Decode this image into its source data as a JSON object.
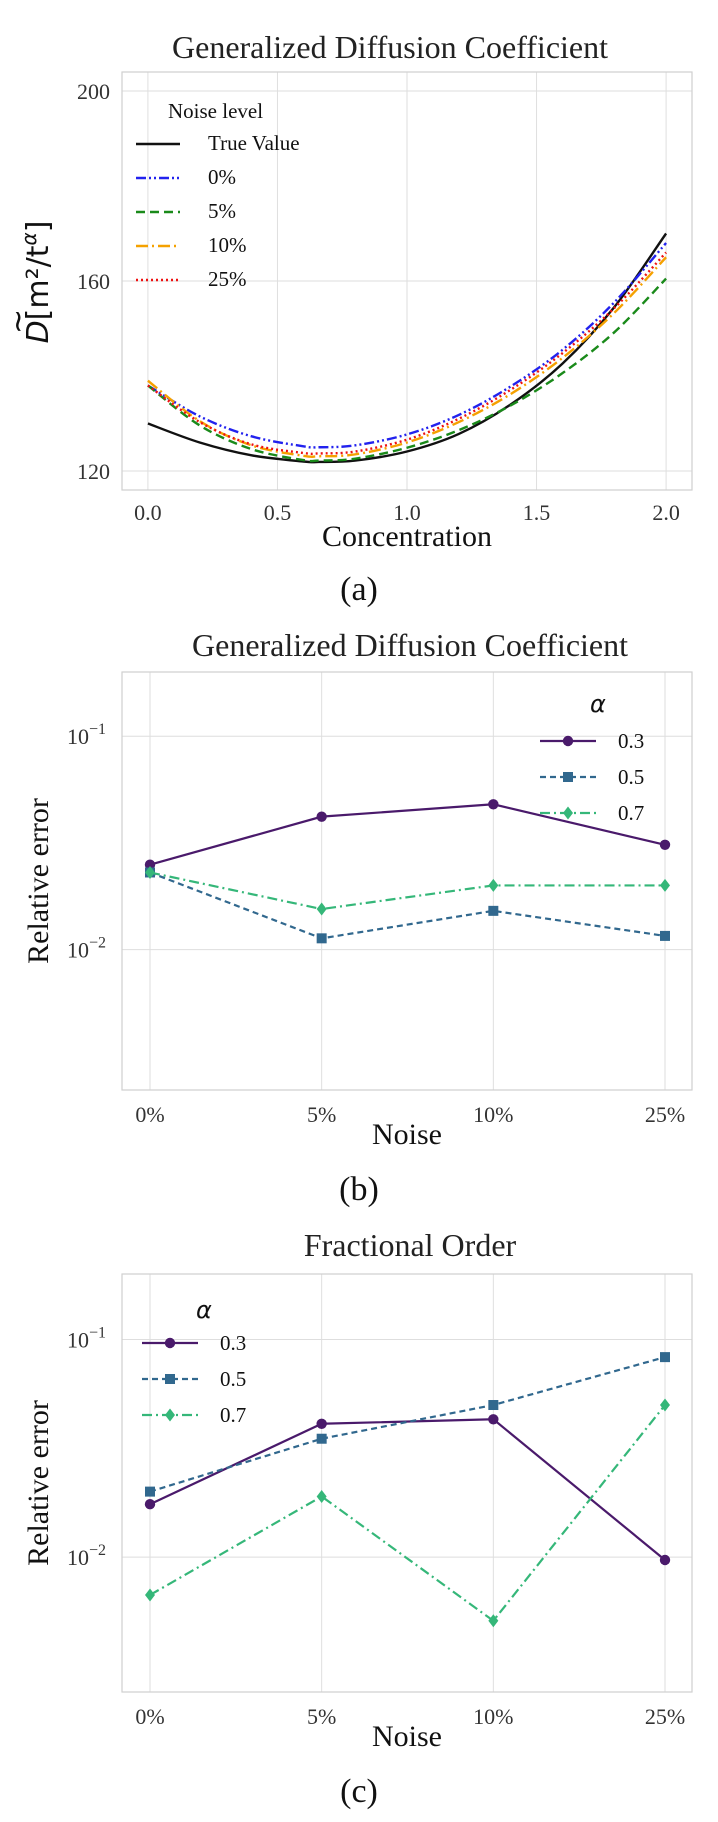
{
  "chart_data": [
    {
      "type": "line",
      "title": "Generalized Diffusion Coefficient",
      "xlabel": "Concentration",
      "ylabel_base": "D",
      "ylabel_unit": "[m²/t",
      "ylabel_exp": "α",
      "ylabel_close": "]",
      "xlim": [
        -0.1,
        2.1
      ],
      "ylim": [
        116,
        204
      ],
      "xticks": [
        0.0,
        0.5,
        1.0,
        1.5,
        2.0
      ],
      "xtick_labels": [
        "0.0",
        "0.5",
        "1.0",
        "1.5",
        "2.0"
      ],
      "yticks": [
        120,
        160,
        200
      ],
      "ytick_labels": [
        "120",
        "160",
        "200"
      ],
      "legend_title": "Noise level",
      "legend_position": "top-left",
      "caption": "(a)",
      "series": [
        {
          "name": "True Value",
          "color": "#111111",
          "dash": "",
          "x": [
            0.0,
            0.2,
            0.4,
            0.6,
            0.66,
            0.8,
            1.0,
            1.2,
            1.4,
            1.6,
            1.8,
            2.0
          ],
          "y": [
            130.0,
            126.0,
            123.3,
            122.0,
            121.9,
            122.2,
            124.1,
            127.8,
            134.0,
            142.6,
            154.5,
            170.0
          ]
        },
        {
          "name": "0%",
          "color": "#2222ee",
          "dash": "10,3,2,3,2,3",
          "x": [
            0.0,
            0.2,
            0.4,
            0.6,
            0.66,
            0.8,
            1.0,
            1.2,
            1.4,
            1.6,
            1.8,
            2.0
          ],
          "y": [
            138.0,
            131.5,
            127.3,
            125.2,
            125.0,
            125.4,
            127.7,
            131.8,
            137.8,
            145.5,
            155.5,
            168.0
          ]
        },
        {
          "name": "5%",
          "color": "#1a8a1a",
          "dash": "9,5",
          "x": [
            0.0,
            0.2,
            0.4,
            0.6,
            0.66,
            0.8,
            1.0,
            1.2,
            1.4,
            1.6,
            1.8,
            2.0
          ],
          "y": [
            138.0,
            129.6,
            124.6,
            122.3,
            122.2,
            122.6,
            124.9,
            128.6,
            133.8,
            140.6,
            149.2,
            160.5
          ]
        },
        {
          "name": "10%",
          "color": "#f5a100",
          "dash": "12,4,2,4",
          "x": [
            0.0,
            0.2,
            0.4,
            0.6,
            0.66,
            0.8,
            1.0,
            1.2,
            1.4,
            1.6,
            1.8,
            2.0
          ],
          "y": [
            139.0,
            130.5,
            125.4,
            123.2,
            123.1,
            123.5,
            126.0,
            130.3,
            136.2,
            143.8,
            153.3,
            165.0
          ]
        },
        {
          "name": "25%",
          "color": "#ee1111",
          "dash": "2,3",
          "x": [
            0.0,
            0.2,
            0.4,
            0.6,
            0.66,
            0.8,
            1.0,
            1.2,
            1.4,
            1.6,
            1.8,
            2.0
          ],
          "y": [
            138.0,
            130.3,
            125.6,
            123.8,
            123.7,
            124.1,
            126.6,
            131.0,
            137.1,
            144.8,
            154.3,
            166.0
          ]
        }
      ]
    },
    {
      "type": "line",
      "title": "Generalized Diffusion Coefficient",
      "xlabel": "Noise",
      "ylabel": "Relative error",
      "yscale": "log",
      "categories": [
        "0%",
        "5%",
        "10%",
        "25%"
      ],
      "ylim": [
        0.0022,
        0.2
      ],
      "yticks": [
        0.01,
        0.1
      ],
      "ytick_bases": [
        "10",
        "10"
      ],
      "ytick_exps": [
        "−2",
        "−1"
      ],
      "legend_title": "α",
      "legend_position": "top-right",
      "caption": "(b)",
      "series": [
        {
          "name": "0.3",
          "color": "#4a1a6b",
          "marker": "circle",
          "dash": "",
          "values": [
            0.025,
            0.042,
            0.048,
            0.031
          ]
        },
        {
          "name": "0.5",
          "color": "#31688e",
          "marker": "square",
          "dash": "6,4",
          "values": [
            0.023,
            0.0113,
            0.0152,
            0.0116
          ]
        },
        {
          "name": "0.7",
          "color": "#35b779",
          "marker": "diamond",
          "dash": "10,4,2,4",
          "values": [
            0.023,
            0.0155,
            0.02,
            0.02
          ]
        }
      ]
    },
    {
      "type": "line",
      "title": "Fractional Order",
      "xlabel": "Noise",
      "ylabel": "Relative error",
      "yscale": "log",
      "categories": [
        "0%",
        "5%",
        "10%",
        "25%"
      ],
      "ylim": [
        0.0024,
        0.2
      ],
      "yticks": [
        0.01,
        0.1
      ],
      "ytick_bases": [
        "10",
        "10"
      ],
      "ytick_exps": [
        "−2",
        "−1"
      ],
      "legend_title": "α",
      "legend_position": "top-left",
      "caption": "(c)",
      "series": [
        {
          "name": "0.3",
          "color": "#4a1a6b",
          "marker": "circle",
          "dash": "",
          "values": [
            0.0175,
            0.041,
            0.043,
            0.0097
          ]
        },
        {
          "name": "0.5",
          "color": "#31688e",
          "marker": "square",
          "dash": "6,4",
          "values": [
            0.02,
            0.035,
            0.05,
            0.083
          ]
        },
        {
          "name": "0.7",
          "color": "#35b779",
          "marker": "diamond",
          "dash": "10,4,2,4",
          "values": [
            0.0067,
            0.019,
            0.0051,
            0.05
          ]
        }
      ]
    }
  ]
}
